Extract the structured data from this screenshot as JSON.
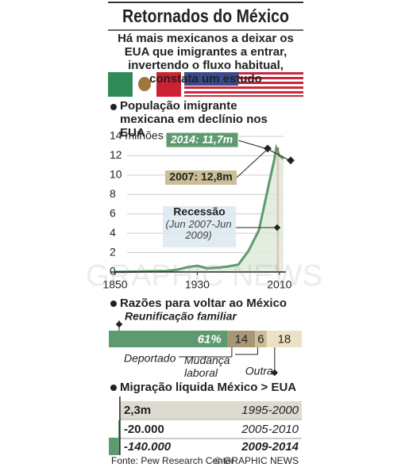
{
  "title": "Retornados do México",
  "subtitle": "Há mais mexicanos a deixar os EUA que imigrantes a entrar, invertendo o fluxo habitual, constata um estudo",
  "chart_data": [
    {
      "type": "area",
      "title": "População imigrante mexicana em declínio nos EUA",
      "x": [
        1850,
        1870,
        1880,
        1900,
        1910,
        1920,
        1930,
        1940,
        1950,
        1960,
        1970,
        1980,
        1990,
        2000,
        2005,
        2007,
        2010,
        2014
      ],
      "values": [
        0.013,
        0.042,
        0.068,
        0.103,
        0.222,
        0.486,
        0.641,
        0.377,
        0.451,
        0.576,
        0.76,
        2.2,
        4.3,
        9.2,
        11.6,
        12.8,
        12.0,
        11.7
      ],
      "color": "#5e9a6f",
      "xlim": [
        1850,
        2014
      ],
      "xticks": [
        1850,
        1930,
        2010
      ],
      "ylim": [
        0,
        14
      ],
      "yticks": [
        0,
        2,
        4,
        6,
        8,
        10,
        12,
        {
          "value": 14,
          "label": "14 milhões"
        }
      ],
      "grid": true,
      "annotations": [
        {
          "text": "2014: 11,7m"
        },
        {
          "text": "2007: 12,8m"
        }
      ],
      "recession": {
        "label": "Recessão",
        "period": "(Jun 2007-Jun 2009)",
        "span": [
          2007.42,
          2009.5
        ]
      }
    },
    {
      "type": "stacked_bar",
      "title": "Razões para voltar ao México",
      "series": [
        {
          "name": "Reunificação familiar",
          "color": "#5e9a6f",
          "values": [
            61
          ],
          "value_labels": [
            "61%"
          ]
        },
        {
          "name": "Deportado",
          "color": "#a99675",
          "values": [
            14
          ]
        },
        {
          "name": "Mudança laboral",
          "color": "#cbbd98",
          "values": [
            6
          ]
        },
        {
          "name": "Outra",
          "color": "#ece2c3",
          "values": [
            18
          ]
        }
      ]
    },
    {
      "type": "bar",
      "title": "Migração líquida México > EUA",
      "categories": [
        "1995-2000",
        "2005-2010",
        "2009-2014"
      ],
      "values": [
        2300000,
        -20000,
        -140000
      ],
      "value_labels": [
        "2,3m",
        "-20.000",
        "-140.000"
      ],
      "colors": [
        "#dedad0",
        "#5e9a6f",
        "#5e9a6f"
      ],
      "xlim": [
        -140000,
        2300000
      ]
    }
  ],
  "footer": {
    "source": "Fonte: Pew Research Center",
    "credit": "© GRAPHIC NEWS"
  },
  "watermark": "GRAPHIC NEWS"
}
